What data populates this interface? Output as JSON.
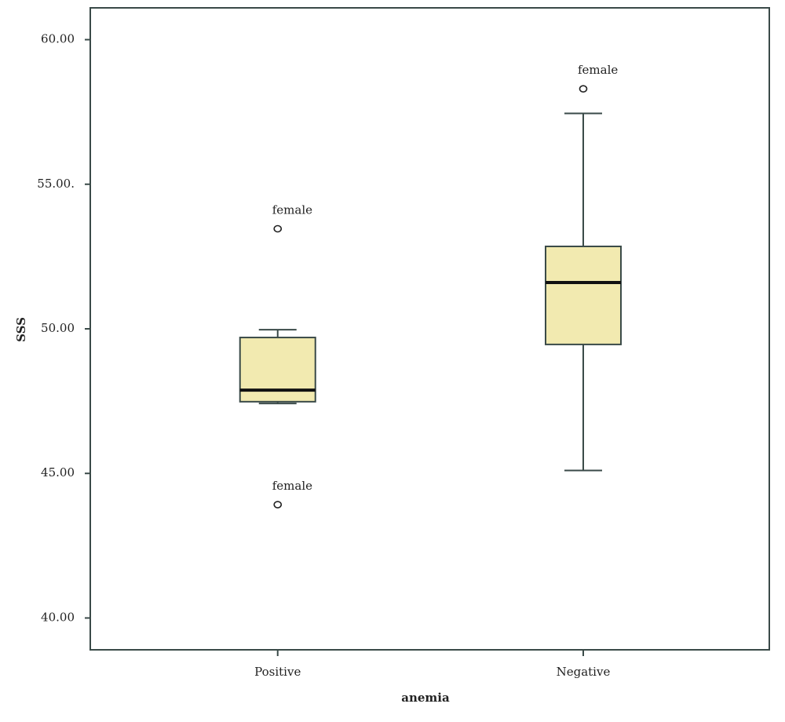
{
  "chart_data": {
    "type": "box",
    "ylabel": "SSS",
    "xlabel": "anemia",
    "categories": [
      "Positive",
      "Negative"
    ],
    "color": "#f2eab0",
    "boxes": [
      {
        "min": 47.42,
        "q1": 47.48,
        "median": 47.88,
        "q3": 49.7,
        "max": 49.97,
        "outliers": [
          {
            "value": 53.46,
            "label": "female"
          },
          {
            "value": 43.92,
            "label": "female"
          }
        ]
      },
      {
        "min": 45.1,
        "q1": 49.46,
        "median": 51.6,
        "q3": 52.85,
        "max": 57.45,
        "outliers": [
          {
            "value": 58.3,
            "label": "female"
          }
        ]
      }
    ],
    "ylim": [
      38.9,
      61.1
    ],
    "yticks": [
      {
        "value": 40,
        "label": "40.00"
      },
      {
        "value": 45,
        "label": "45.00"
      },
      {
        "value": 50,
        "label": "50.00"
      },
      {
        "value": 55,
        "label": "55.00."
      },
      {
        "value": 60,
        "label": "60.00"
      }
    ]
  }
}
